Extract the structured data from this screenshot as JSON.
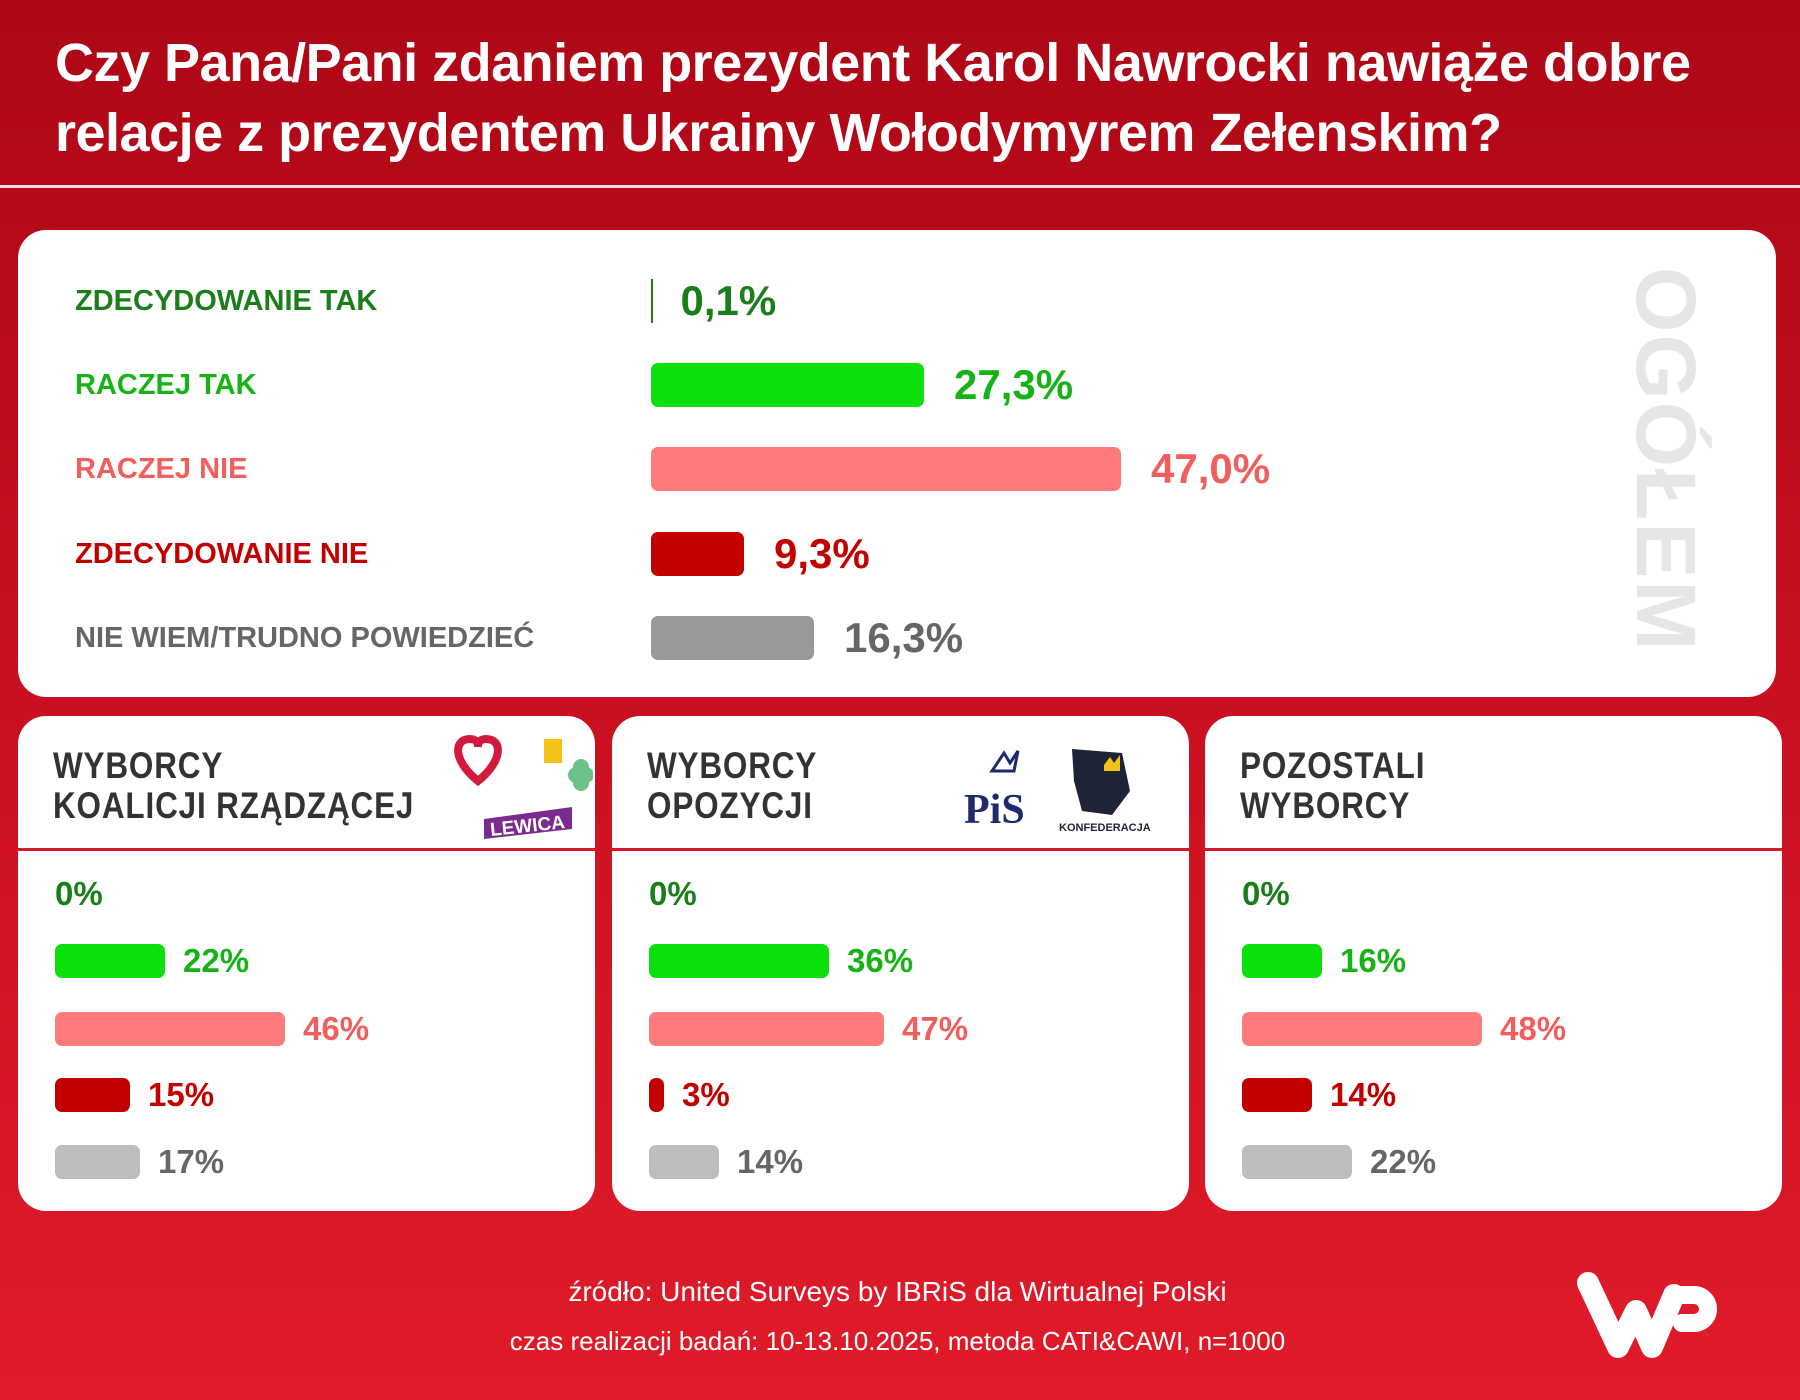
{
  "title": "Czy Pana/Pani zdaniem prezydent Karol Nawrocki nawiąże dobre relacje z prezydentem Ukrainy Wołodymyrem Załenskim?",
  "colors": {
    "dark_green": "#1a7f1a",
    "bright_green": "#0ce00c",
    "green_text": "#16b316",
    "pink": "#ff7b7b",
    "pink_text": "#f25d5d",
    "dark_red": "#c20000",
    "gray": "#999999",
    "light_gray": "#bdbdbd",
    "gray_text": "#666666"
  },
  "chart_data": {
    "type": "bar",
    "title": "Czy Pana/Pani zdaniem prezydent Karol Nawrocki nawiąże dobre relacje z prezydentem Ukrainy Wołodymyrem Zełenskim?",
    "categories": [
      "ZDECYDOWANIE TAK",
      "RACZEJ TAK",
      "RACZEJ NIE",
      "ZDECYDOWANIE NIE",
      "NIE WIEM/TRUDNO POWIEDZIEĆ"
    ],
    "overall": {
      "label": "OGÓŁEM",
      "values": [
        0.1,
        27.3,
        47.0,
        9.3,
        16.3
      ],
      "value_labels": [
        "0,1%",
        "27,3%",
        "47,0%",
        "9,3%",
        "16,3%"
      ]
    },
    "groups": [
      {
        "name": "WYBORCY KOALICJI RZĄDZĄCEJ",
        "line1": "WYBORCY",
        "line2": "KOALICJI RZĄDZĄCEJ",
        "values": [
          0,
          22,
          46,
          15,
          17
        ],
        "value_labels": [
          "0%",
          "22%",
          "46%",
          "15%",
          "17%"
        ],
        "logo_text": "LEWICA"
      },
      {
        "name": "WYBORCY OPOZYCJI",
        "line1": "WYBORCY",
        "line2": "OPOZYCJI",
        "values": [
          0,
          36,
          47,
          3,
          14
        ],
        "value_labels": [
          "0%",
          "36%",
          "47%",
          "3%",
          "14%"
        ],
        "logo_text": "PiS",
        "logo_text2": "KONFEDERACJA"
      },
      {
        "name": "POZOSTALI WYBORCY",
        "line1": "POZOSTALI",
        "line2": "WYBORCY",
        "values": [
          0,
          16,
          48,
          14,
          22
        ],
        "value_labels": [
          "0%",
          "16%",
          "48%",
          "14%",
          "22%"
        ]
      }
    ]
  },
  "footer": {
    "source": "źródło: United Surveys by IBRiS dla Wirtualnej Polski",
    "method": "czas realizacji badań: 10-13.10.2025, metoda CATI&CAWI, n=1000"
  }
}
